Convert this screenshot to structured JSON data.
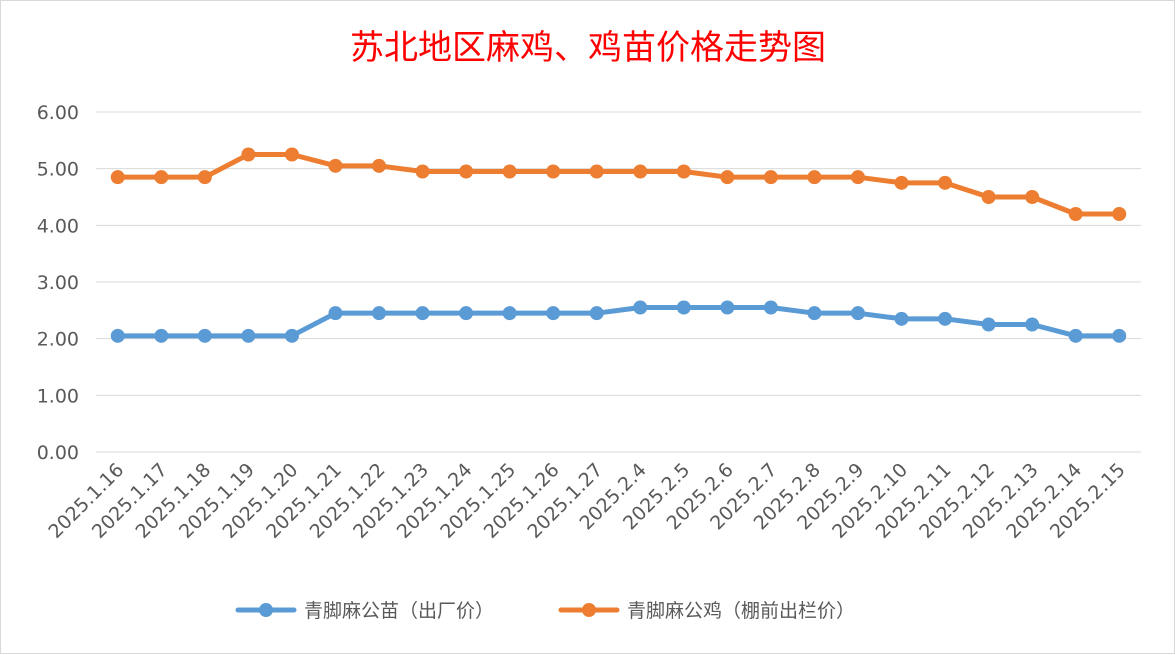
{
  "chart_data": {
    "type": "line",
    "title": "苏北地区麻鸡、鸡苗价格走势图",
    "xlabel": "",
    "ylabel": "",
    "categories": [
      "2025.1.16",
      "2025.1.17",
      "2025.1.18",
      "2025.1.19",
      "2025.1.20",
      "2025.1.21",
      "2025.1.22",
      "2025.1.23",
      "2025.1.24",
      "2025.1.25",
      "2025.1.26",
      "2025.1.27",
      "2025.2.4",
      "2025.2.5",
      "2025.2.6",
      "2025.2.7",
      "2025.2.8",
      "2025.2.9",
      "2025.2.10",
      "2025.2.11",
      "2025.2.12",
      "2025.2.13",
      "2025.2.14",
      "2025.2.15"
    ],
    "ylim": [
      0,
      6
    ],
    "yticks": [
      "0.00",
      "1.00",
      "2.00",
      "3.00",
      "4.00",
      "5.00",
      "6.00"
    ],
    "grid": true,
    "legend_position": "bottom",
    "series": [
      {
        "name": "青脚麻公苗（出厂价）",
        "color": "#5b9bd5",
        "values": [
          2.05,
          2.05,
          2.05,
          2.05,
          2.05,
          2.45,
          2.45,
          2.45,
          2.45,
          2.45,
          2.45,
          2.45,
          2.55,
          2.55,
          2.55,
          2.55,
          2.45,
          2.45,
          2.35,
          2.35,
          2.25,
          2.25,
          2.05,
          2.05
        ]
      },
      {
        "name": "青脚麻公鸡（棚前出栏价）",
        "color": "#ed7d31",
        "values": [
          4.85,
          4.85,
          4.85,
          5.25,
          5.25,
          5.05,
          5.05,
          4.95,
          4.95,
          4.95,
          4.95,
          4.95,
          4.95,
          4.95,
          4.85,
          4.85,
          4.85,
          4.85,
          4.75,
          4.75,
          4.5,
          4.5,
          4.2,
          4.2
        ]
      }
    ]
  }
}
